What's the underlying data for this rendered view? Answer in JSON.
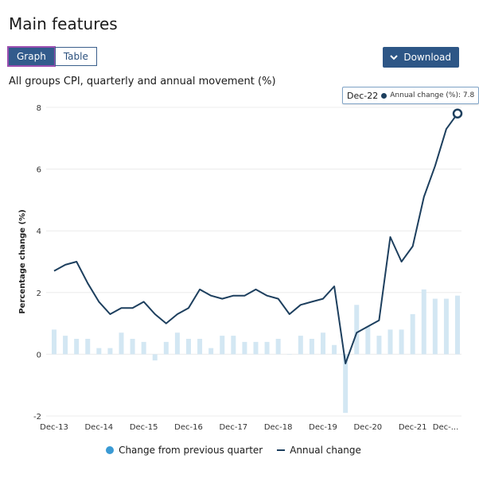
{
  "page": {
    "title": "Main features",
    "tabs": [
      {
        "label": "Graph",
        "active": true
      },
      {
        "label": "Table",
        "active": false
      }
    ],
    "download_label": "Download",
    "accent_color": "#2d5686",
    "focus_color": "#9b4fb0"
  },
  "chart_data": {
    "type": "bar+line",
    "subtitle": "All groups CPI, quarterly and annual movement (%)",
    "ylabel": "Percentage change (%)",
    "xlabel": "",
    "ylim": [
      -2,
      8
    ],
    "yticks": [
      -2,
      0,
      2,
      4,
      6,
      8
    ],
    "grid": true,
    "legend_position": "bottom-center",
    "x_tick_labels": [
      "Dec-13",
      "Dec-14",
      "Dec-15",
      "Dec-16",
      "Dec-17",
      "Dec-18",
      "Dec-19",
      "Dec-20",
      "Dec-21",
      "Dec-..."
    ],
    "x": [
      "Dec-13",
      "Mar-14",
      "Jun-14",
      "Sep-14",
      "Dec-14",
      "Mar-15",
      "Jun-15",
      "Sep-15",
      "Dec-15",
      "Mar-16",
      "Jun-16",
      "Sep-16",
      "Dec-16",
      "Mar-17",
      "Jun-17",
      "Sep-17",
      "Dec-17",
      "Mar-18",
      "Jun-18",
      "Sep-18",
      "Dec-18",
      "Mar-19",
      "Jun-19",
      "Sep-19",
      "Dec-19",
      "Mar-20",
      "Jun-20",
      "Sep-20",
      "Dec-20",
      "Mar-21",
      "Jun-21",
      "Sep-21",
      "Dec-21",
      "Mar-22",
      "Jun-22",
      "Sep-22",
      "Dec-22"
    ],
    "series": [
      {
        "name": "Change from previous quarter",
        "type": "bar",
        "color": "#d3e7f3",
        "values": [
          0.8,
          0.6,
          0.5,
          0.5,
          0.2,
          0.2,
          0.7,
          0.5,
          0.4,
          -0.2,
          0.4,
          0.7,
          0.5,
          0.5,
          0.2,
          0.6,
          0.6,
          0.4,
          0.4,
          0.4,
          0.5,
          0.0,
          0.6,
          0.5,
          0.7,
          0.3,
          -1.9,
          1.6,
          0.9,
          0.6,
          0.8,
          0.8,
          1.3,
          2.1,
          1.8,
          1.8,
          1.9
        ]
      },
      {
        "name": "Annual change",
        "type": "line",
        "color": "#1d3f5e",
        "values": [
          2.7,
          2.9,
          3.0,
          2.3,
          1.7,
          1.3,
          1.5,
          1.5,
          1.7,
          1.3,
          1.0,
          1.3,
          1.5,
          2.1,
          1.9,
          1.8,
          1.9,
          1.9,
          2.1,
          1.9,
          1.8,
          1.3,
          1.6,
          1.7,
          1.8,
          2.2,
          -0.3,
          0.7,
          0.9,
          1.1,
          3.8,
          3.0,
          3.5,
          5.1,
          6.1,
          7.3,
          7.8
        ]
      }
    ],
    "tooltip": {
      "date": "Dec-22",
      "label": "Annual change (%): 7.8"
    }
  }
}
